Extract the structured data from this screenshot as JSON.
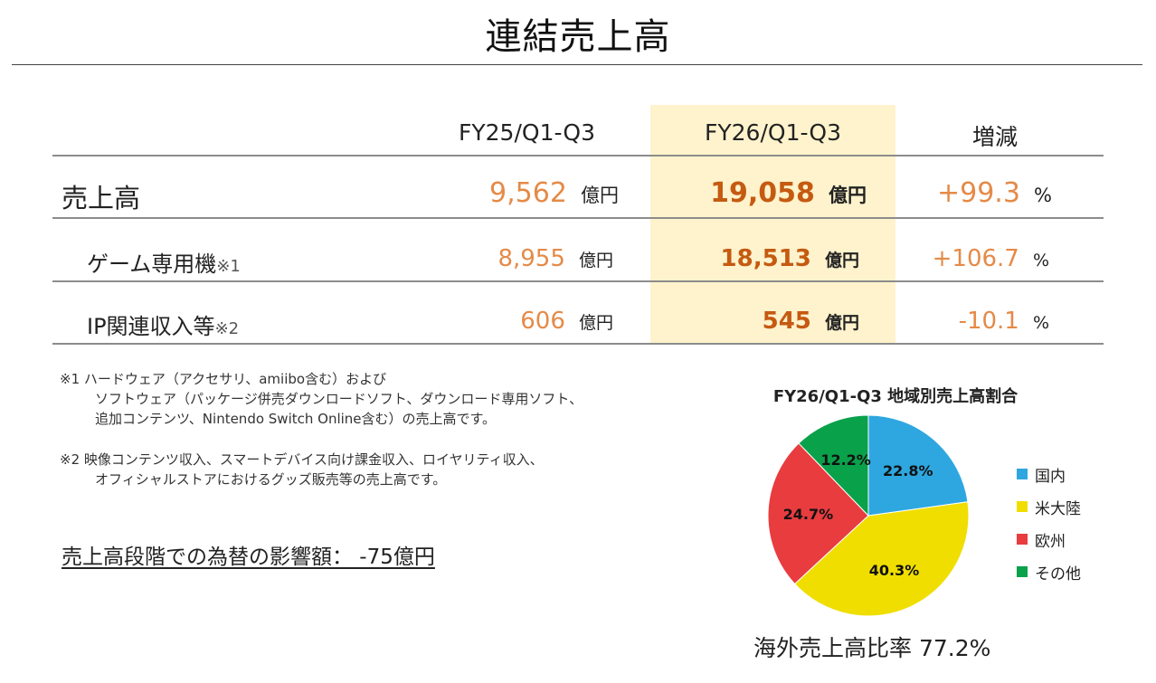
{
  "title": "連結売上高",
  "table": {
    "headers": {
      "prev": "FY25/Q1-Q3",
      "cur": "FY26/Q1-Q3",
      "change": "増減"
    },
    "rows": [
      {
        "label": "売上高",
        "prev": "9,562",
        "prev_unit": "億円",
        "cur": "19,058",
        "cur_unit": "億円",
        "change": "+99.3",
        "change_unit": "%"
      },
      {
        "label": "ゲーム専用機",
        "note": "※1",
        "prev": "8,955",
        "prev_unit": "億円",
        "cur": "18,513",
        "cur_unit": "億円",
        "change": "+106.7",
        "change_unit": "%"
      },
      {
        "label": "IP関連収入等",
        "note": "※2",
        "prev": "606",
        "prev_unit": "億円",
        "cur": "545",
        "cur_unit": "億円",
        "change": "-10.1",
        "change_unit": "%"
      }
    ]
  },
  "notes": {
    "note1_line1": "※1 ハードウェア（アクセサリ、amiibo含む）および",
    "note1_line2": "ソフトウェア（パッケージ併売ダウンロードソフト、ダウンロード専用ソフト、",
    "note1_line3": "追加コンテンツ、Nintendo Switch Online含む）の売上高です。",
    "note2_line1": "※2 映像コンテンツ収入、スマートデバイス向け課金収入、ロイヤリティ収入、",
    "note2_line2": "オフィシャルストアにおけるグッズ販売等の売上高です。"
  },
  "fx_impact": "売上高段階での為替の影響額： -75億円",
  "overseas_ratio": "海外売上高比率 77.2%",
  "colors": {
    "highlight_column": "#fef3cc",
    "prev_value": "#e58a47",
    "cur_value": "#c55a11"
  },
  "chart_data": {
    "type": "pie",
    "title": "FY26/Q1-Q3 地域別売上高割合",
    "categories": [
      "国内",
      "米大陸",
      "欧州",
      "その他"
    ],
    "values": [
      22.8,
      40.3,
      24.7,
      12.2
    ],
    "labels": [
      "22.8%",
      "40.3%",
      "24.7%",
      "12.2%"
    ],
    "colors": [
      "#2ea7e0",
      "#f0de00",
      "#e83c3f",
      "#0aa14b"
    ],
    "start_angle": "12 o'clock",
    "direction": "clockwise",
    "legend_position": "right"
  }
}
